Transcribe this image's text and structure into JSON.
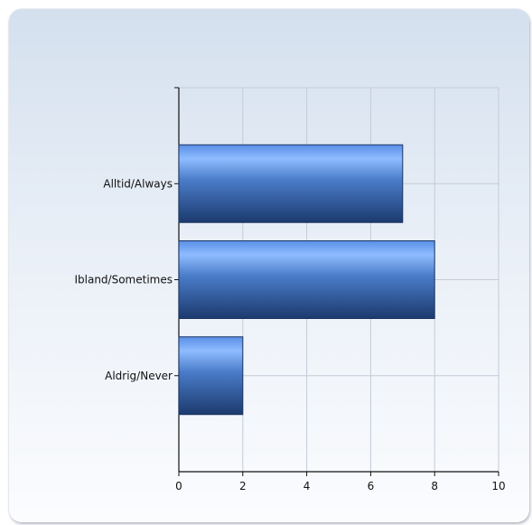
{
  "chart_data": {
    "type": "bar",
    "orientation": "horizontal",
    "categories": [
      "Alltid/Always",
      "Ibland/Sometimes",
      "Aldrig/Never"
    ],
    "values": [
      7,
      8,
      2
    ],
    "title": "",
    "xlabel": "",
    "ylabel": "",
    "xlim": [
      0,
      10
    ],
    "xticks": [
      0,
      2,
      4,
      6,
      8,
      10
    ],
    "grid": true,
    "legend": "none",
    "colors": {
      "bar_light": "#8fbcff",
      "bar_mid": "#4a82d8",
      "bar_dark": "#1c3a6e",
      "grid": "#c3cbd6"
    }
  }
}
